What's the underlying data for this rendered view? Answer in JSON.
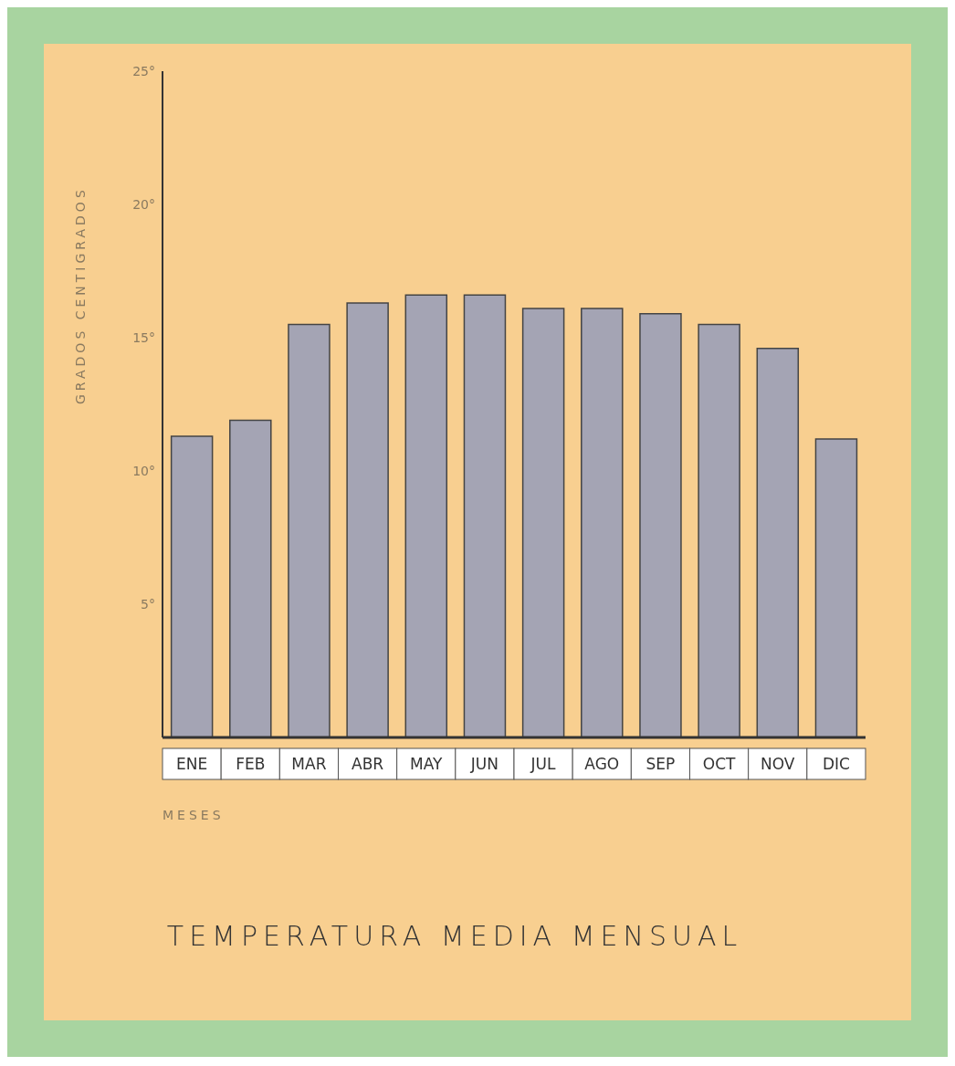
{
  "chart_data": {
    "type": "bar",
    "title": "TEMPERATURA MEDIA MENSUAL",
    "xlabel": "MESES",
    "ylabel": "GRADOS CENTIGRADOS",
    "categories": [
      "ENE",
      "FEB",
      "MAR",
      "ABR",
      "MAY",
      "JUN",
      "JUL",
      "AGO",
      "SEP",
      "OCT",
      "NOV",
      "DIC"
    ],
    "values": [
      11.3,
      11.9,
      15.5,
      16.3,
      16.6,
      16.6,
      16.1,
      16.1,
      15.9,
      15.5,
      14.6,
      11.2
    ],
    "color": "#a4a4b4",
    "ylim": [
      0,
      25
    ],
    "yticks": [
      {
        "value": 5,
        "label": "5°"
      },
      {
        "value": 10,
        "label": "10°"
      },
      {
        "value": 15,
        "label": "15°"
      },
      {
        "value": 20,
        "label": "20°"
      },
      {
        "value": 25,
        "label": "25°"
      }
    ],
    "grid": false
  }
}
